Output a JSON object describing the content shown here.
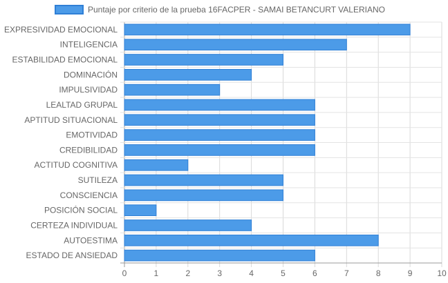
{
  "chart_data": {
    "type": "bar",
    "orientation": "horizontal",
    "title": "",
    "xlabel": "",
    "ylabel": "",
    "xlim": [
      0,
      10
    ],
    "x_ticks": [
      "0",
      "1",
      "2",
      "3",
      "4",
      "5",
      "6",
      "7",
      "8",
      "9",
      "10"
    ],
    "grid": true,
    "legend_position": "top",
    "categories": [
      "EXPRESIVIDAD EMOCIONAL",
      "INTELIGENCIA",
      "ESTABILIDAD EMOCIONAL",
      "DOMINACIÓN",
      "IMPULSIVIDAD",
      "LEALTAD GRUPAL",
      "APTITUD SITUACIONAL",
      "EMOTIVIDAD",
      "CREDIBILIDAD",
      "ACTITUD COGNITIVA",
      "SUTILEZA",
      "CONSCIENCIA",
      "POSICIÓN SOCIAL",
      "CERTEZA INDIVIDUAL",
      "AUTOESTIMA",
      "ESTADO DE ANSIEDAD"
    ],
    "series": [
      {
        "name": "Puntaje por criterio de la prueba 16FACPER - SAMAI BETANCURT VALERIANO",
        "values": [
          9,
          7,
          5,
          4,
          3,
          6,
          6,
          6,
          6,
          2,
          5,
          5,
          1,
          4,
          8,
          6
        ],
        "color": "#4c9be8",
        "border_color": "#2f7fd6"
      }
    ]
  }
}
